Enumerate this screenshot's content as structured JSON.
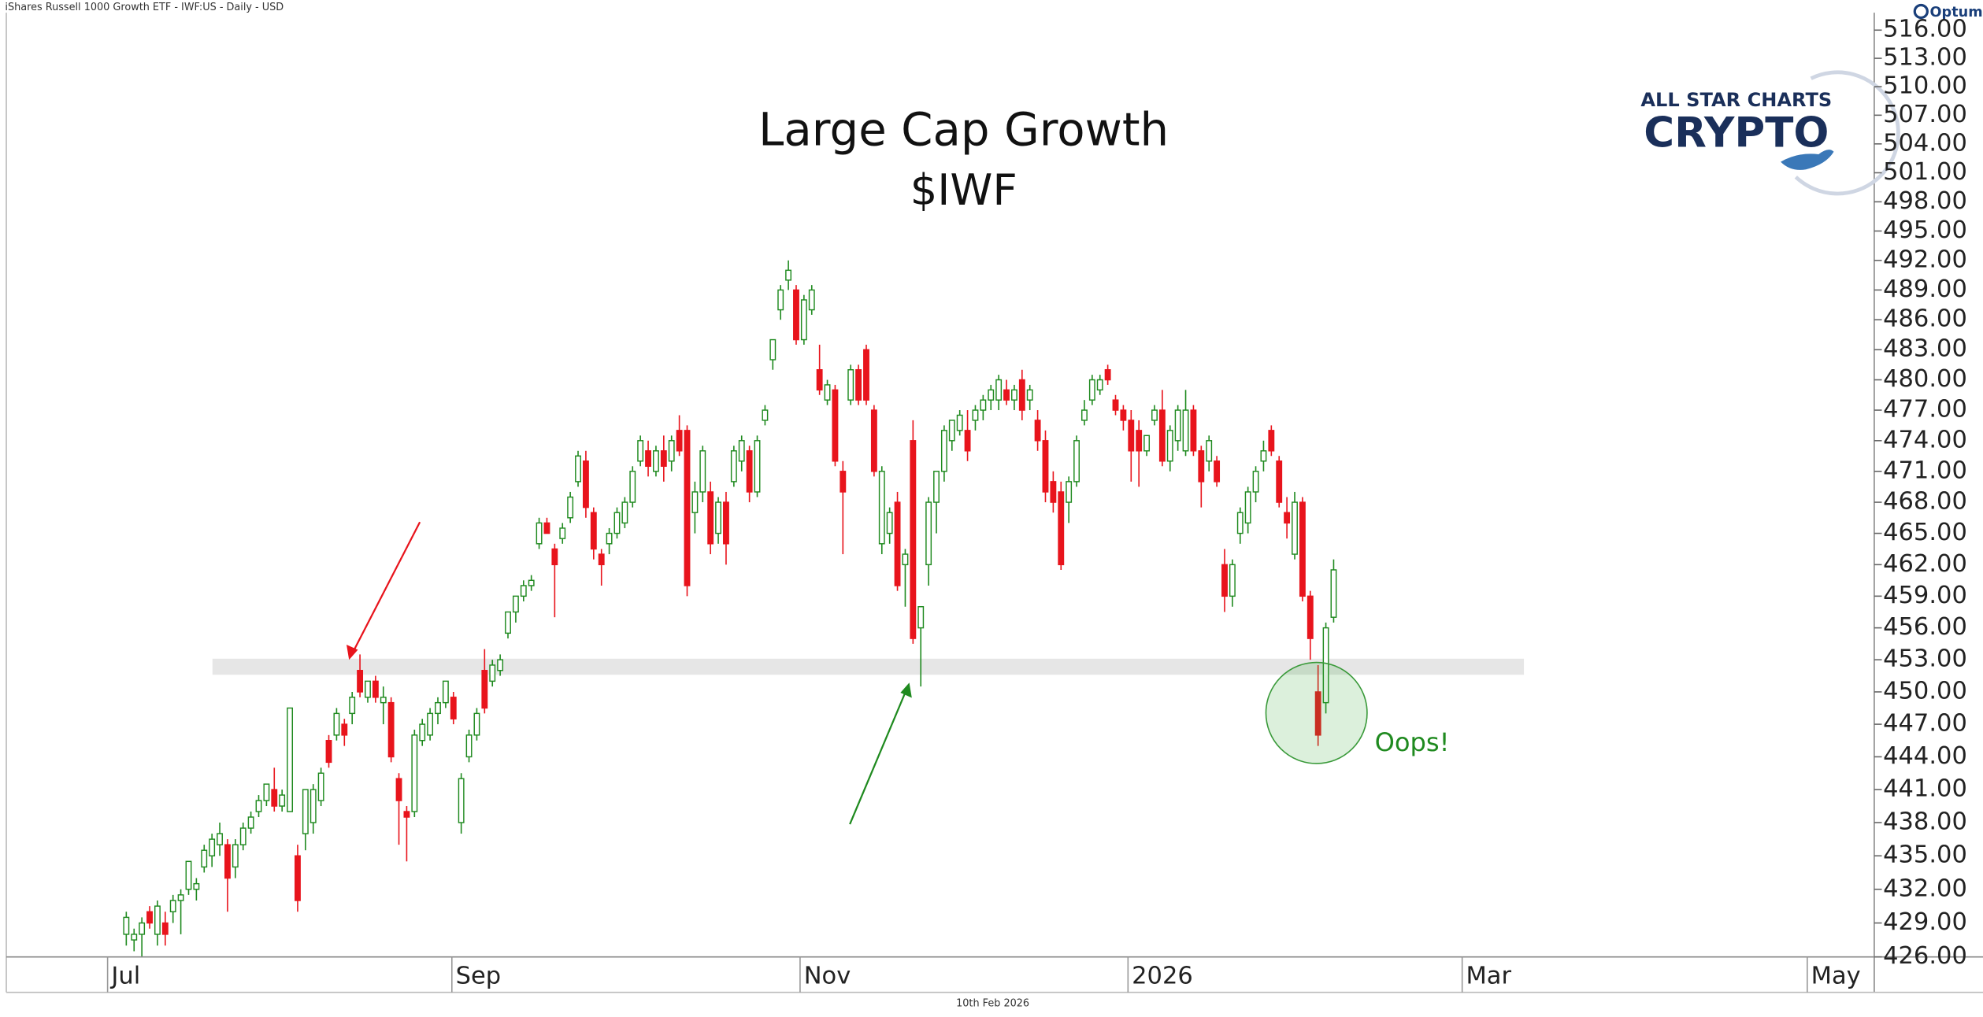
{
  "header": "iShares Russell 1000 Growth ETF - IWF:US - Daily - USD",
  "footer": "10th Feb 2026",
  "brand": {
    "platform": "Optuma",
    "logo_top": "ALL STAR CHARTS",
    "logo_main": "CRYPTO"
  },
  "chart_data": {
    "type": "candlestick",
    "title": "Large Cap Growth",
    "subtitle": "$IWF",
    "annotation": "Oops!",
    "up_color": "#1f8a1f",
    "down_color": "#e8141c",
    "log_scale": true,
    "support_band": [
      451.6,
      453.1
    ],
    "xlim": [
      -15.4,
      224.4
    ],
    "xticks": [
      {
        "value": -2.4,
        "label": "Jul"
      },
      {
        "value": 41.8,
        "label": "Sep"
      },
      {
        "value": 86.5,
        "label": "Nov"
      },
      {
        "value": 128.6,
        "label": "2026"
      },
      {
        "value": 171.5,
        "label": "Mar"
      },
      {
        "value": 215.8,
        "label": "May"
      }
    ],
    "ylim": [
      426,
      518
    ],
    "yticks": [
      {
        "value": 426,
        "label": "426.00"
      },
      {
        "value": 429,
        "label": "429.00"
      },
      {
        "value": 432,
        "label": "432.00"
      },
      {
        "value": 435,
        "label": "435.00"
      },
      {
        "value": 438,
        "label": "438.00"
      },
      {
        "value": 441,
        "label": "441.00"
      },
      {
        "value": 444,
        "label": "444.00"
      },
      {
        "value": 447,
        "label": "447.00"
      },
      {
        "value": 450,
        "label": "450.00"
      },
      {
        "value": 453,
        "label": "453.00"
      },
      {
        "value": 456,
        "label": "456.00"
      },
      {
        "value": 459,
        "label": "459.00"
      },
      {
        "value": 462,
        "label": "462.00"
      },
      {
        "value": 465,
        "label": "465.00"
      },
      {
        "value": 468,
        "label": "468.00"
      },
      {
        "value": 471,
        "label": "471.00"
      },
      {
        "value": 474,
        "label": "474.00"
      },
      {
        "value": 477,
        "label": "477.00"
      },
      {
        "value": 480,
        "label": "480.00"
      },
      {
        "value": 483,
        "label": "483.00"
      },
      {
        "value": 486,
        "label": "486.00"
      },
      {
        "value": 489,
        "label": "489.00"
      },
      {
        "value": 492,
        "label": "492.00"
      },
      {
        "value": 495,
        "label": "495.00"
      },
      {
        "value": 498,
        "label": "498.00"
      },
      {
        "value": 501,
        "label": "501.00"
      },
      {
        "value": 504,
        "label": "504.00"
      },
      {
        "value": 507,
        "label": "507.00"
      },
      {
        "value": 510,
        "label": "510.00"
      },
      {
        "value": 513,
        "label": "513.00"
      },
      {
        "value": 516,
        "label": "516.00"
      }
    ],
    "candles": [
      [
        428,
        430,
        427,
        429.5
      ],
      [
        427.5,
        428.5,
        426.5,
        428
      ],
      [
        428,
        429.5,
        426,
        429
      ],
      [
        430,
        430.5,
        428.5,
        429
      ],
      [
        428,
        431,
        427,
        430.5
      ],
      [
        429,
        430,
        427,
        428
      ],
      [
        430,
        431.5,
        429,
        431
      ],
      [
        431,
        432,
        428,
        431.5
      ],
      [
        432,
        434.5,
        431.5,
        434.5
      ],
      [
        432,
        433,
        431,
        432.5
      ],
      [
        434,
        436,
        433.5,
        435.5
      ],
      [
        435,
        437,
        434,
        436.5
      ],
      [
        436,
        438,
        435,
        437
      ],
      [
        436,
        436.5,
        430,
        433
      ],
      [
        434,
        436.5,
        433,
        436
      ],
      [
        436,
        438,
        435.5,
        437.5
      ],
      [
        437.5,
        439,
        437,
        438.5
      ],
      [
        439,
        440.5,
        438.5,
        440
      ],
      [
        440,
        441.5,
        439.5,
        441.5
      ],
      [
        441,
        443,
        439,
        439.5
      ],
      [
        439.5,
        441,
        439,
        440.5
      ],
      [
        439,
        448.5,
        439,
        448.5
      ],
      [
        435,
        436,
        430,
        431
      ],
      [
        437,
        441,
        435.5,
        441
      ],
      [
        438,
        441.5,
        437,
        441
      ],
      [
        440,
        443,
        439.5,
        442.5
      ],
      [
        445.5,
        446,
        443,
        443.5
      ],
      [
        446,
        448.5,
        445.5,
        448
      ],
      [
        447,
        447.5,
        445,
        446
      ],
      [
        448,
        450,
        447,
        449.5
      ],
      [
        452,
        453.5,
        449.5,
        450
      ],
      [
        449.5,
        451,
        449,
        451
      ],
      [
        451,
        451.5,
        449,
        449.5
      ],
      [
        449,
        450.5,
        447,
        449.5
      ],
      [
        449,
        449.5,
        443.5,
        444
      ],
      [
        442,
        442.5,
        436,
        440
      ],
      [
        439,
        439.5,
        434.5,
        438.5
      ],
      [
        439,
        446.5,
        438.5,
        446
      ],
      [
        445.5,
        447.5,
        445,
        447
      ],
      [
        446,
        448.5,
        445.5,
        448
      ],
      [
        448,
        449.5,
        447,
        449
      ],
      [
        449,
        451,
        448.5,
        451
      ],
      [
        449.5,
        450,
        447,
        447.5
      ],
      [
        438,
        442.5,
        437,
        442
      ],
      [
        444,
        446.5,
        443.5,
        446
      ],
      [
        446,
        448.5,
        445.5,
        448
      ],
      [
        452,
        454,
        448,
        448.5
      ],
      [
        451,
        453,
        450.5,
        452.5
      ],
      [
        452,
        453.5,
        451.5,
        453
      ],
      [
        455.5,
        457.5,
        455,
        457.5
      ],
      [
        457.5,
        459,
        456.5,
        459
      ],
      [
        459,
        460.5,
        458.5,
        460
      ],
      [
        460,
        461,
        459.5,
        460.5
      ],
      [
        464,
        466.5,
        463.5,
        466
      ],
      [
        466,
        466.5,
        465,
        465
      ],
      [
        463.5,
        464,
        457,
        462
      ],
      [
        464.5,
        466,
        464,
        465.5
      ],
      [
        466.5,
        469,
        466,
        468.5
      ],
      [
        470,
        473,
        469.5,
        472.5
      ],
      [
        472,
        473,
        466.5,
        467.5
      ],
      [
        467,
        467.5,
        462.5,
        463.5
      ],
      [
        463,
        463.5,
        460,
        462
      ],
      [
        464,
        465.5,
        463,
        465
      ],
      [
        465,
        467.5,
        464.5,
        467
      ],
      [
        466,
        468.5,
        465.5,
        468
      ],
      [
        468,
        471.5,
        467.5,
        471
      ],
      [
        472,
        474.5,
        471.5,
        474
      ],
      [
        473,
        474,
        470.5,
        471.5
      ],
      [
        471,
        473.5,
        470.5,
        473
      ],
      [
        473,
        474.5,
        470,
        471.5
      ],
      [
        472,
        474.5,
        471,
        474
      ],
      [
        475,
        476.5,
        472.5,
        473
      ],
      [
        475,
        475.5,
        459,
        460
      ],
      [
        467,
        470,
        465,
        469
      ],
      [
        469,
        473.5,
        468,
        473
      ],
      [
        469,
        470,
        463,
        464
      ],
      [
        465,
        468.5,
        464,
        468
      ],
      [
        468,
        469,
        462,
        464
      ],
      [
        470,
        473.5,
        469.5,
        473
      ],
      [
        472,
        474.5,
        471,
        474
      ],
      [
        473,
        473.5,
        468,
        469
      ],
      [
        469,
        474.5,
        468.5,
        474
      ],
      [
        476,
        477.5,
        475.5,
        477
      ],
      [
        482,
        484,
        481,
        484
      ],
      [
        487,
        489.5,
        486,
        489
      ],
      [
        490,
        492,
        489,
        491
      ],
      [
        489,
        489.5,
        483.5,
        484
      ],
      [
        484,
        488.5,
        483.5,
        488
      ],
      [
        487,
        489.5,
        486.5,
        489
      ],
      [
        481,
        483.5,
        478.5,
        479
      ],
      [
        478,
        480,
        477.5,
        479.5
      ],
      [
        479,
        479.5,
        471.5,
        472
      ],
      [
        471,
        472,
        463,
        469
      ],
      [
        478,
        481.5,
        477.5,
        481
      ],
      [
        481,
        481.5,
        477.5,
        478
      ],
      [
        483,
        483.5,
        477.5,
        478
      ],
      [
        477,
        477.5,
        470.5,
        471
      ],
      [
        464,
        471.5,
        463,
        471
      ],
      [
        465,
        467.5,
        464,
        467
      ],
      [
        468,
        469,
        459.5,
        460
      ],
      [
        462,
        463.5,
        458,
        463
      ],
      [
        474,
        476,
        454.5,
        455
      ],
      [
        456,
        458,
        450.5,
        458
      ],
      [
        462,
        468.5,
        460,
        468
      ],
      [
        468,
        471,
        465,
        471
      ],
      [
        471,
        475.5,
        470,
        475
      ],
      [
        474,
        476,
        473,
        476
      ],
      [
        475,
        477,
        474.5,
        476.5
      ],
      [
        475,
        477,
        472,
        473
      ],
      [
        476,
        477.5,
        475,
        477
      ],
      [
        477,
        478.5,
        476,
        478
      ],
      [
        478,
        479.5,
        477,
        479
      ],
      [
        478,
        480.5,
        477,
        480
      ],
      [
        479,
        480,
        477.5,
        478
      ],
      [
        478,
        479.5,
        477,
        479
      ],
      [
        480,
        481,
        476,
        477
      ],
      [
        478,
        479.5,
        477,
        479
      ],
      [
        476,
        477,
        473,
        474
      ],
      [
        474,
        475,
        468,
        469
      ],
      [
        470,
        471,
        467,
        468
      ],
      [
        469,
        470,
        461.5,
        462
      ],
      [
        468,
        470.5,
        466,
        470
      ],
      [
        470,
        474.5,
        469.5,
        474
      ],
      [
        476,
        478,
        475.5,
        477
      ],
      [
        478,
        480.5,
        477.5,
        480
      ],
      [
        479,
        480.5,
        478.5,
        480
      ],
      [
        481,
        481.5,
        479.5,
        480
      ],
      [
        478,
        478.5,
        476.5,
        477
      ],
      [
        477,
        477.5,
        475,
        476
      ],
      [
        476,
        477,
        470,
        473
      ],
      [
        475,
        476,
        469.5,
        473
      ],
      [
        473,
        474.5,
        472.5,
        474.5
      ],
      [
        476,
        477.5,
        475.5,
        477
      ],
      [
        477,
        479,
        471.5,
        472
      ],
      [
        472,
        475.5,
        471,
        475
      ],
      [
        474,
        477.5,
        473,
        477
      ],
      [
        473,
        479,
        472.5,
        477
      ],
      [
        477,
        477.5,
        472.5,
        473
      ],
      [
        473,
        473.5,
        467.5,
        470
      ],
      [
        472,
        474.5,
        471,
        474
      ],
      [
        472,
        472.5,
        469.5,
        470
      ],
      [
        462,
        463.5,
        457.5,
        459
      ],
      [
        459,
        462.5,
        458,
        462
      ],
      [
        465,
        467.5,
        464,
        467
      ],
      [
        466,
        469.5,
        465,
        469
      ],
      [
        469,
        471.5,
        468,
        471
      ],
      [
        472,
        474,
        471,
        473
      ],
      [
        475,
        475.5,
        472.5,
        473
      ],
      [
        472,
        472.5,
        467.5,
        468
      ],
      [
        467,
        468.5,
        464.5,
        466
      ],
      [
        463,
        469,
        462.5,
        468
      ],
      [
        468,
        468.5,
        458.5,
        459
      ],
      [
        459,
        459.5,
        453,
        455
      ],
      [
        450,
        452.5,
        445,
        446
      ],
      [
        449,
        456.5,
        448,
        456
      ],
      [
        457,
        462.5,
        456.5,
        461.5
      ]
    ]
  }
}
